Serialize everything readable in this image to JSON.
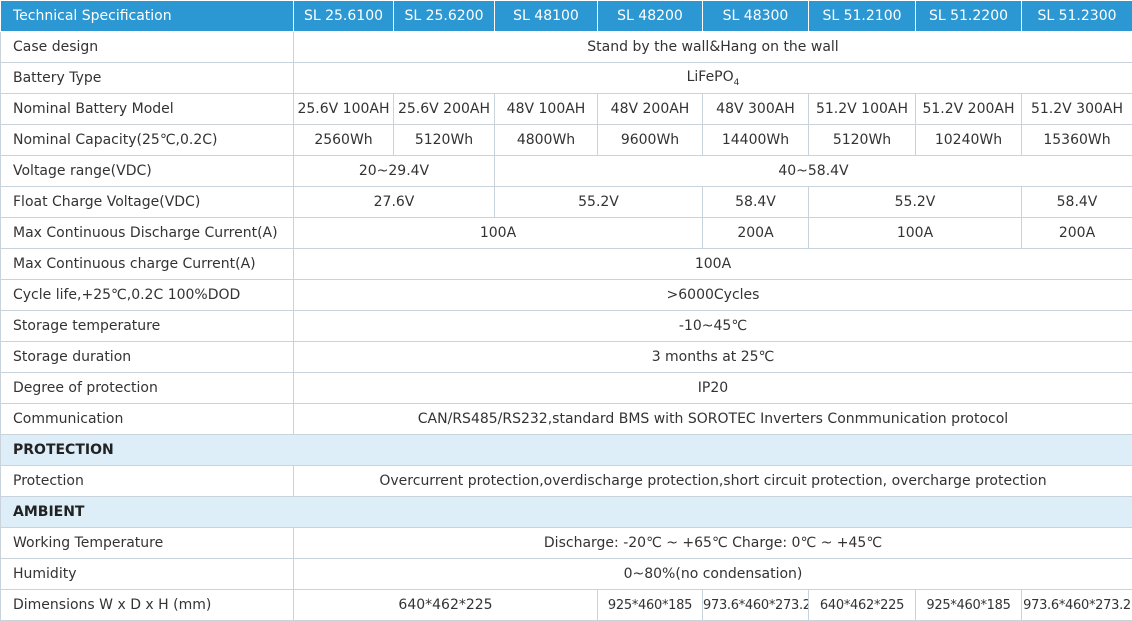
{
  "header": {
    "label": "Technical Specification",
    "models": [
      "SL 25.6100",
      "SL 25.6200",
      "SL 48100",
      "SL 48200",
      "SL 48300",
      "SL 51.2100",
      "SL 51.2200",
      "SL 51.2300"
    ]
  },
  "rows": {
    "case_design": {
      "label": "Case design",
      "value": "Stand by the wall&Hang on the wall"
    },
    "battery_type": {
      "label": "Battery Type",
      "value": "LiFePO",
      "sub": "4"
    },
    "nominal_model": {
      "label": "Nominal Battery Model",
      "values": [
        "25.6V 100AH",
        "25.6V 200AH",
        "48V 100AH",
        "48V 200AH",
        "48V 300AH",
        "51.2V 100AH",
        "51.2V 200AH",
        "51.2V 300AH"
      ]
    },
    "nominal_capacity": {
      "label": "Nominal Capacity(25℃,0.2C)",
      "values": [
        "2560Wh",
        "5120Wh",
        "4800Wh",
        "9600Wh",
        "14400Wh",
        "5120Wh",
        "10240Wh",
        "15360Wh"
      ]
    },
    "voltage_range": {
      "label": "Voltage range(VDC)",
      "values": [
        "20~29.4V",
        "40~58.4V"
      ]
    },
    "float_charge": {
      "label": "Float Charge Voltage(VDC)",
      "values": [
        "27.6V",
        "55.2V",
        "58.4V",
        "55.2V",
        "58.4V"
      ]
    },
    "max_discharge": {
      "label": "Max Continuous Discharge Current(A)",
      "values": [
        "100A",
        "200A",
        "100A",
        "200A"
      ]
    },
    "max_charge": {
      "label": "Max Continuous charge Current(A)",
      "value": "100A"
    },
    "cycle_life": {
      "label": "Cycle life,+25℃,0.2C 100%DOD",
      "value": ">6000Cycles"
    },
    "storage_temp": {
      "label": "Storage temperature",
      "value": "-10~45℃"
    },
    "storage_duration": {
      "label": "Storage duration",
      "value": "3 months at 25℃"
    },
    "protection_degree": {
      "label": "Degree of protection",
      "value": "IP20"
    },
    "communication": {
      "label": "Communication",
      "value": "CAN/RS485/RS232,standard BMS with SOROTEC Inverters Conmmunication protocol"
    },
    "protection": {
      "label": "Protection",
      "value": "Overcurrent protection,overdischarge protection,short circuit protection, overcharge protection"
    },
    "working_temp": {
      "label": "Working Temperature",
      "value": "Discharge: -20℃ ~ +65℃  Charge: 0℃ ~ +45℃"
    },
    "humidity": {
      "label": "Humidity",
      "value": "0~80%(no condensation)"
    },
    "dimensions": {
      "label": "Dimensions W x D x H (mm)",
      "values": [
        "640*462*225",
        "925*460*185",
        "973.6*460*273.2",
        "640*462*225",
        "925*460*185",
        "973.6*460*273.2"
      ]
    }
  },
  "sections": {
    "protection": "PROTECTION",
    "ambient": "AMBIENT"
  }
}
